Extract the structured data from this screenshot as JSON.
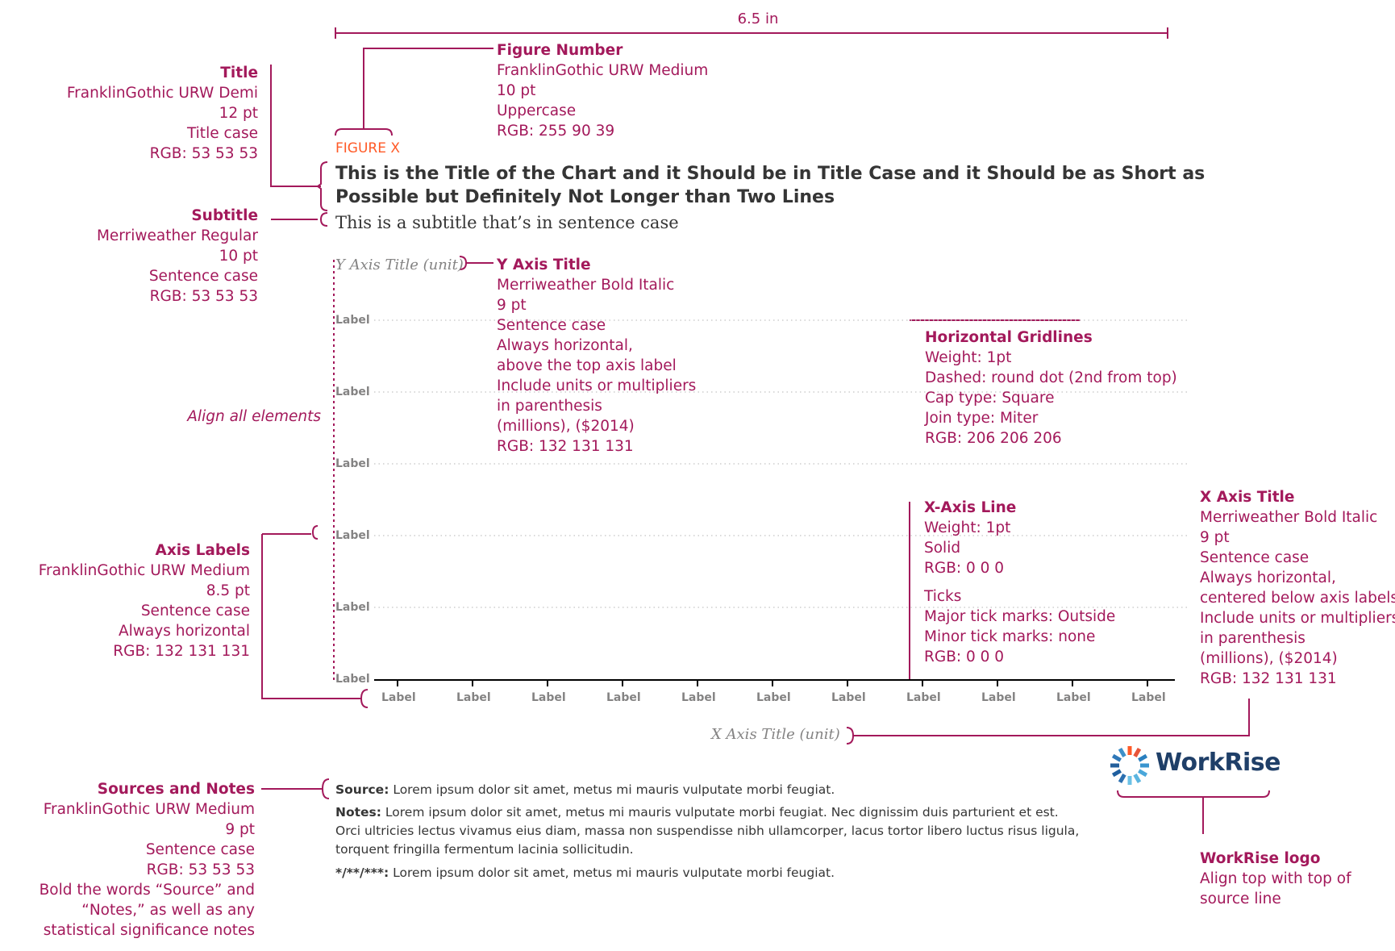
{
  "width_label": "6.5 in",
  "figure_number": "FIGURE X",
  "title": "This is the Title of the Chart and it Should be in Title Case and it Should be as Short as Possible but Definitely Not Longer than Two Lines",
  "subtitle": "This is a subtitle that’s in sentence case",
  "y_axis_title": "Y Axis Title (unit)",
  "x_axis_title": "X Axis Title (unit)",
  "y_labels": [
    "Label",
    "Label",
    "Label",
    "Label",
    "Label",
    "Label"
  ],
  "x_labels": [
    "Label",
    "Label",
    "Label",
    "Label",
    "Label",
    "Label",
    "Label",
    "Label",
    "Label",
    "Label",
    "Label"
  ],
  "annotations": {
    "title": {
      "heading": "Title",
      "lines": [
        "FranklinGothic URW Demi",
        "12 pt",
        "Title case",
        "RGB: 53 53 53"
      ]
    },
    "subtitle": {
      "heading": "Subtitle",
      "lines": [
        "Merriweather Regular",
        "10 pt",
        "Sentence case",
        "RGB: 53 53 53"
      ]
    },
    "align": "Align all elements",
    "axis_labels": {
      "heading": "Axis Labels",
      "lines": [
        "FranklinGothic URW Medium",
        "8.5 pt",
        "Sentence case",
        "Always horizontal",
        "RGB: 132 131 131"
      ]
    },
    "sources": {
      "heading": "Sources and Notes",
      "lines": [
        "FranklinGothic URW Medium",
        "9 pt",
        "Sentence case",
        "RGB: 53 53 53",
        "Bold the words “Source” and",
        "“Notes,” as well as any",
        "statistical significance notes"
      ]
    },
    "figure_number": {
      "heading": "Figure Number",
      "lines": [
        "FranklinGothic URW Medium",
        "10 pt",
        "Uppercase",
        "RGB: 255 90 39"
      ]
    },
    "y_axis_title": {
      "heading": "Y Axis Title",
      "lines": [
        "Merriweather Bold Italic",
        "9 pt",
        "Sentence case",
        "Always horizontal,",
        "above the top axis label",
        "Include units or multipliers",
        "in parenthesis",
        "(millions), ($2014)",
        "RGB: 132 131 131"
      ]
    },
    "gridlines": {
      "heading": "Horizontal Gridlines",
      "lines": [
        "Weight: 1pt",
        "Dashed: round dot (2nd from top)",
        "Cap type: Square",
        "Join type: Miter",
        "RGB: 206 206 206"
      ]
    },
    "x_axis_line": {
      "heading": "X-Axis Line",
      "lines": [
        "Weight: 1pt",
        "Solid",
        "RGB: 0 0 0"
      ]
    },
    "ticks": {
      "heading": "Ticks",
      "lines": [
        "Major tick marks: Outside",
        "Minor tick marks: none",
        "RGB: 0 0 0"
      ]
    },
    "x_axis_title": {
      "heading": "X Axis Title",
      "lines": [
        "Merriweather Bold Italic",
        "9 pt",
        "Sentence case",
        "Always horizontal,",
        "centered below axis labels",
        "Include units or multipliers",
        "in parenthesis",
        "(millions), ($2014)",
        "RGB: 132 131 131"
      ]
    },
    "logo": {
      "heading": "WorkRise logo",
      "lines": [
        "Align top with top of",
        "source line"
      ]
    }
  },
  "source": {
    "label": "Source:",
    "text": "Lorem ipsum dolor sit amet, metus mi mauris vulputate morbi feugiat."
  },
  "notes": {
    "label": "Notes:",
    "lines": [
      "Lorem ipsum dolor sit amet, metus mi mauris vulputate morbi feugiat. Nec dignissim duis parturient et est.",
      "Orci ultricies lectus vivamus eius diam, massa non suspendisse nibh ullamcorper, lacus tortor libero luctus risus ligula,",
      "torquent fringilla fermentum lacinia sollicitudin."
    ]
  },
  "significance": {
    "label": "*/**/***:",
    "text": "Lorem ipsum dolor sit amet, metus mi mauris vulputate morbi feugiat."
  },
  "logo_text": "WorkRise",
  "colors": {
    "annotation": "#a3195b",
    "figure_number": "#ff5a27",
    "title": "#353535",
    "axis_label": "#848383",
    "gridline": "#cecece",
    "logo_text": "#1f3f68"
  }
}
